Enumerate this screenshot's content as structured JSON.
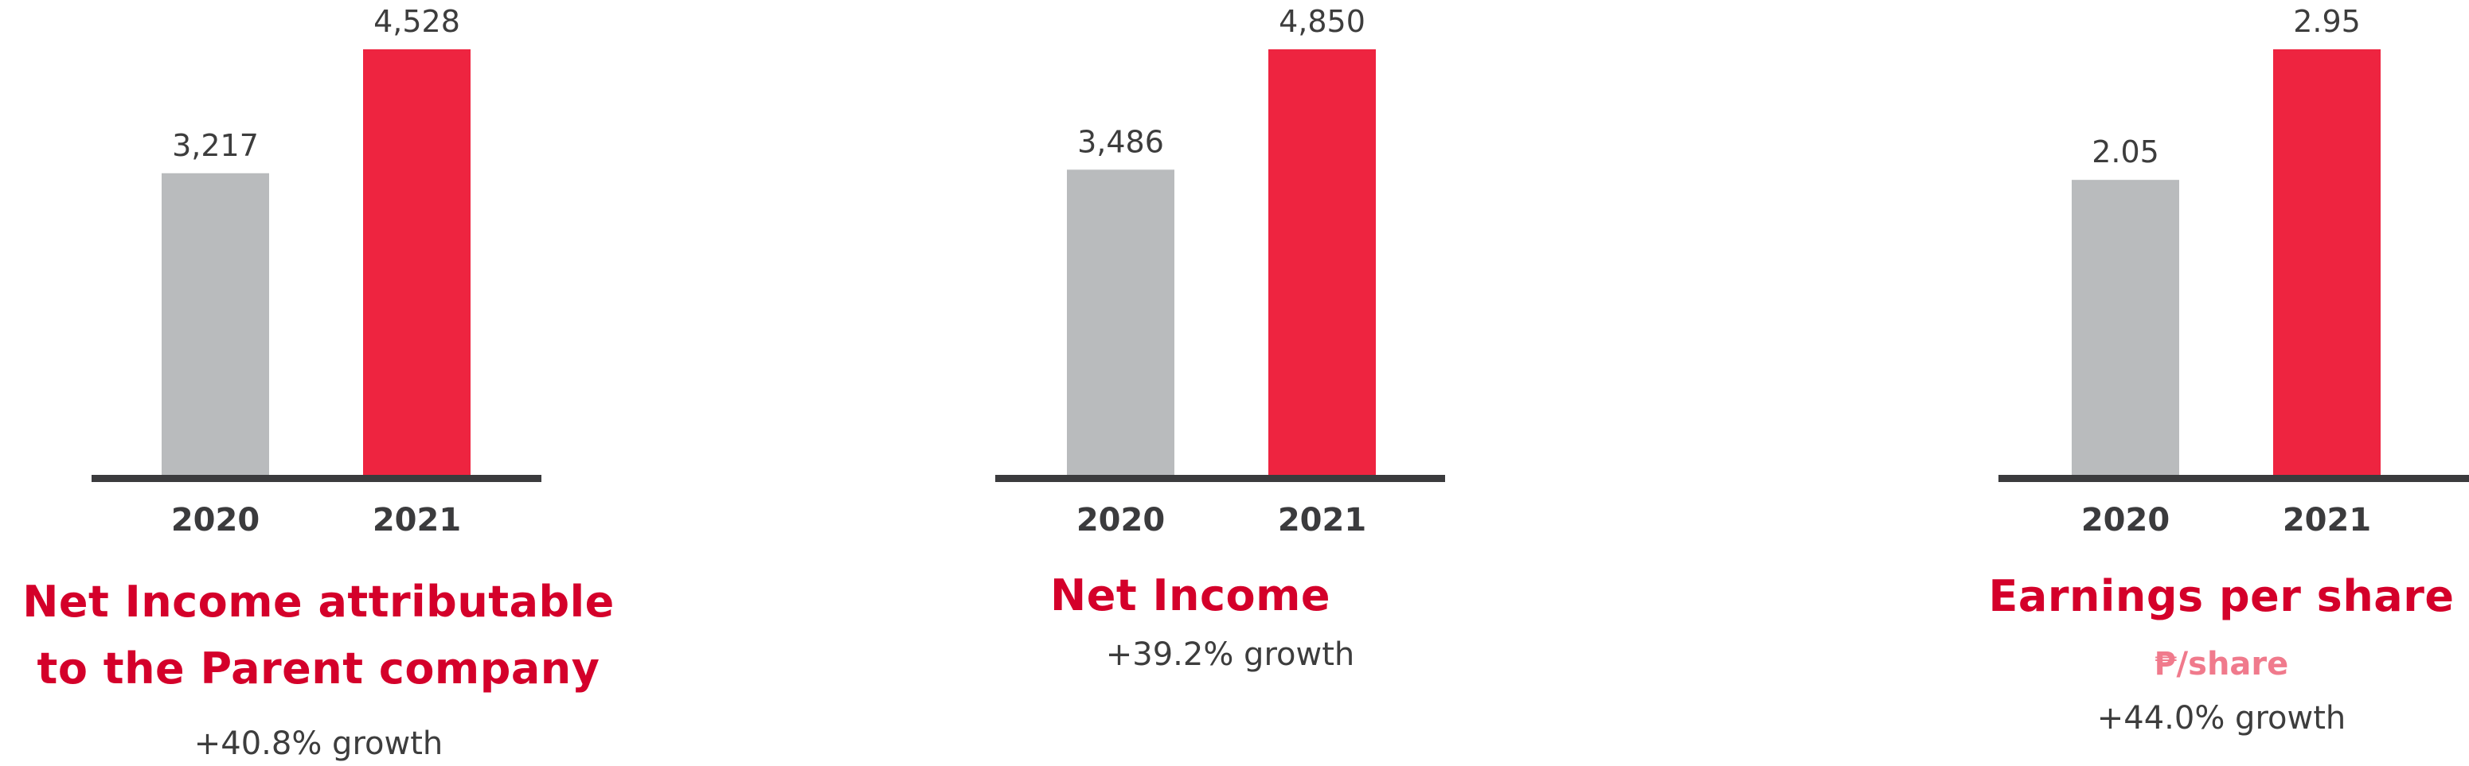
{
  "colors": {
    "prior_bar": "#b9bbbd",
    "current_bar": "#ee2440",
    "axis": "#3b3b3d",
    "title": "#d4002a",
    "subtitle": "#f07a8c",
    "text": "#3d3d3d"
  },
  "chart_data": [
    {
      "type": "bar",
      "title": "Net Income attributable\nto the Parent company",
      "categories": [
        "2020",
        "2021"
      ],
      "values": [
        3217,
        4528
      ],
      "value_labels": [
        "3,217",
        "4,528"
      ],
      "ylim": [
        0,
        4528
      ],
      "growth": "+40.8% growth"
    },
    {
      "type": "bar",
      "title": "Net Income",
      "categories": [
        "2020",
        "2021"
      ],
      "values": [
        3486,
        4850
      ],
      "value_labels": [
        "3,486",
        "4,850"
      ],
      "ylim": [
        0,
        4850
      ],
      "growth": "+39.2% growth"
    },
    {
      "type": "bar",
      "title": "Earnings per share",
      "subtitle": "₱/share",
      "categories": [
        "2020",
        "2021"
      ],
      "values": [
        2.05,
        2.95
      ],
      "value_labels": [
        "2.05",
        "2.95"
      ],
      "ylim": [
        0,
        2.95
      ],
      "growth": "+44.0% growth"
    }
  ]
}
